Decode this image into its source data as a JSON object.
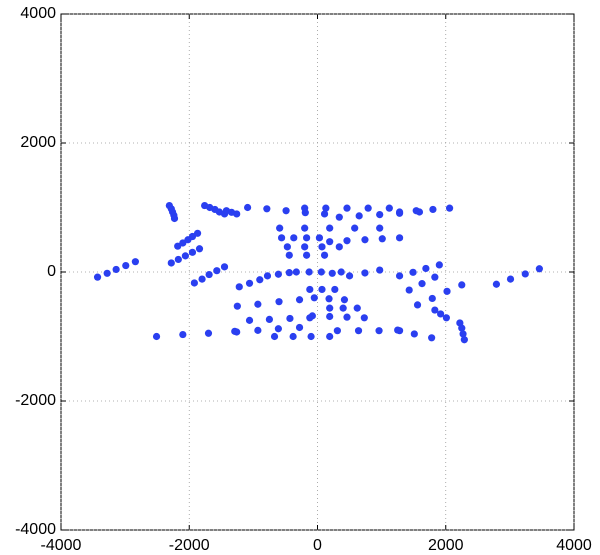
{
  "chart_data": {
    "type": "scatter",
    "x": [
      -3430,
      -3280,
      -3140,
      -2990,
      -2840,
      -2310,
      -2280,
      -2260,
      -2240,
      -2230,
      -2280,
      -2170,
      -2060,
      -1950,
      -1840,
      -2180,
      -2100,
      -2020,
      -1950,
      -1870,
      -1760,
      -1680,
      -1600,
      -1530,
      -1450,
      -1420,
      -1340,
      -1260,
      -1920,
      -1800,
      -1690,
      -1570,
      -1450,
      -1090,
      -790,
      -490,
      -190,
      110,
      -200,
      130,
      460,
      790,
      1120,
      340,
      650,
      970,
      1280,
      1590,
      1280,
      1540,
      1800,
      2060,
      -590,
      -200,
      190,
      580,
      970,
      -560,
      -370,
      -170,
      30,
      190,
      460,
      740,
      1010,
      1280,
      -470,
      -200,
      70,
      340,
      -440,
      -170,
      110,
      -1220,
      -1060,
      -900,
      -780,
      -610,
      -440,
      -330,
      -130,
      60,
      230,
      370,
      500,
      740,
      970,
      1280,
      1490,
      1690,
      1900,
      1430,
      1630,
      1830,
      1560,
      1790,
      2020,
      2250,
      2790,
      3010,
      3240,
      3460,
      -1250,
      -930,
      -600,
      -280,
      -120,
      70,
      270,
      -50,
      180,
      420,
      190,
      400,
      620,
      -1060,
      -750,
      -430,
      -120,
      -80,
      190,
      460,
      730,
      -1260,
      -930,
      -610,
      -280,
      -2510,
      -2100,
      -1700,
      -1290,
      -670,
      -380,
      -100,
      190,
      310,
      640,
      960,
      1280,
      1250,
      1510,
      1780,
      2220,
      2250,
      2270,
      2290,
      1830,
      1920,
      2010
    ],
    "series": [
      {
        "color": "#2a3ff0",
        "values": [
          -80,
          -20,
          40,
          100,
          160,
          1030,
          980,
          930,
          880,
          830,
          140,
          195,
          250,
          305,
          360,
          400,
          450,
          500,
          550,
          600,
          1030,
          1000,
          970,
          930,
          900,
          950,
          925,
          900,
          -170,
          -110,
          -40,
          20,
          80,
          1000,
          980,
          950,
          920,
          900,
          990,
          990,
          990,
          990,
          990,
          850,
          870,
          890,
          910,
          930,
          930,
          950,
          970,
          990,
          680,
          680,
          680,
          680,
          680,
          530,
          530,
          530,
          530,
          470,
          485,
          500,
          515,
          530,
          390,
          390,
          390,
          390,
          260,
          260,
          260,
          -230,
          -175,
          -120,
          -60,
          -35,
          -10,
          0,
          0,
          0,
          -20,
          0,
          -60,
          -15,
          30,
          -60,
          -5,
          55,
          110,
          -280,
          -180,
          -80,
          -510,
          -410,
          -300,
          -200,
          -190,
          -110,
          -30,
          50,
          -530,
          -500,
          -460,
          -430,
          -270,
          -270,
          -270,
          -400,
          -415,
          -430,
          -560,
          -560,
          -560,
          -750,
          -735,
          -720,
          -710,
          -680,
          -690,
          -700,
          -710,
          -930,
          -905,
          -880,
          -860,
          -1000,
          -970,
          -950,
          -920,
          -1000,
          -1000,
          -1000,
          -1000,
          -910,
          -910,
          -910,
          -910,
          -900,
          -960,
          -1020,
          -790,
          -870,
          -960,
          -1050,
          -590,
          -650,
          -710
        ]
      }
    ],
    "xlim": [
      -4000,
      4000
    ],
    "ylim": [
      -4000,
      4000
    ],
    "xticks": [
      -4000,
      -2000,
      0,
      2000,
      4000
    ],
    "yticks": [
      -4000,
      -2000,
      0,
      2000,
      4000
    ],
    "grid": true
  }
}
